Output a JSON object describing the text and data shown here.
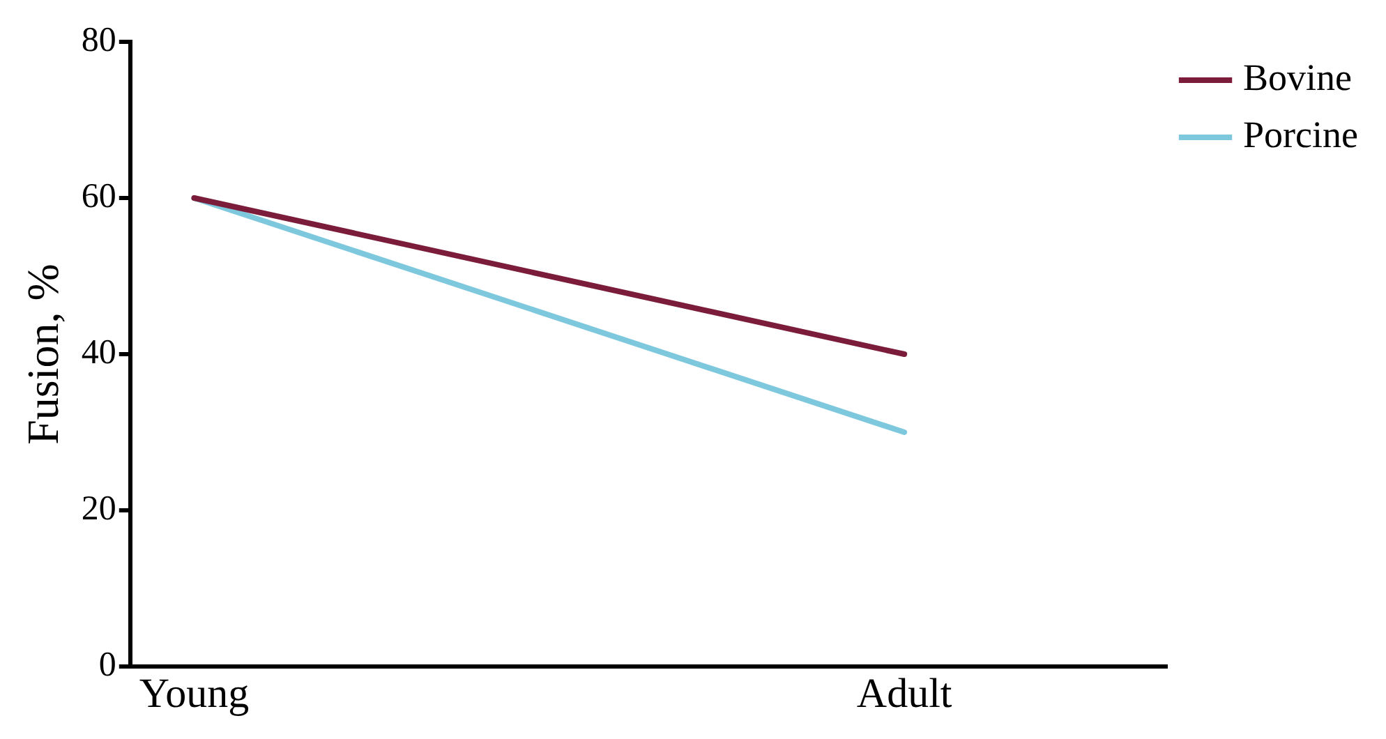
{
  "chart_data": {
    "type": "line",
    "ylabel": "Fusion, %",
    "categories": [
      "Young",
      "Adult"
    ],
    "series": [
      {
        "name": "Bovine",
        "color": "#7b1d3a",
        "values": [
          60,
          40
        ]
      },
      {
        "name": "Porcine",
        "color": "#7ec8de",
        "values": [
          60,
          30
        ]
      }
    ],
    "ylim": [
      0,
      80
    ],
    "yticks": [
      0,
      20,
      40,
      60,
      80
    ],
    "grid": false,
    "legend": "top right",
    "marker": "none",
    "line_style": "solid"
  }
}
